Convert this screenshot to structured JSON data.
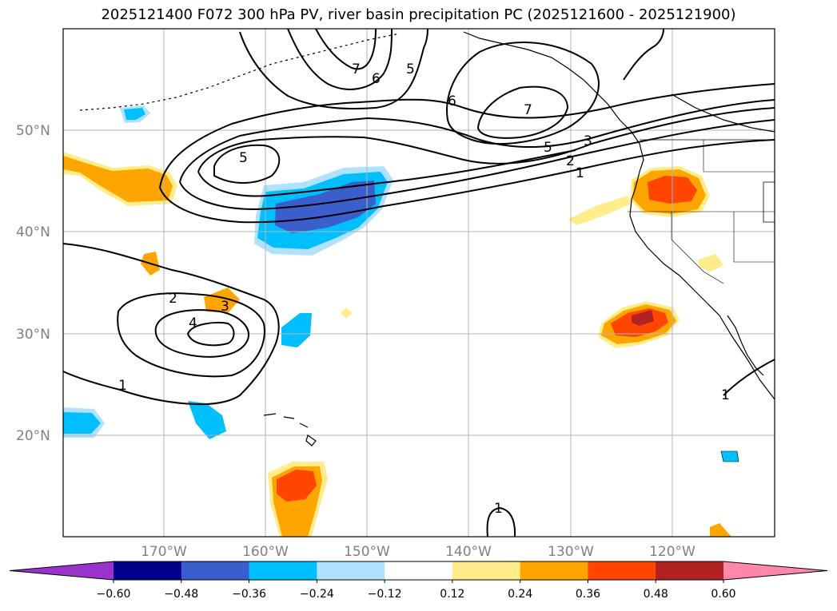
{
  "title": "2025121400 F072 300 hPa PV, river basin precipitation PC (2025121600 - 2025121900)",
  "latitude_labels": [
    "50°N",
    "40°N",
    "30°N",
    "20°N"
  ],
  "longitude_labels": [
    "170°W",
    "160°W",
    "150°W",
    "140°W",
    "130°W",
    "120°W"
  ],
  "contour_labels": [
    "7",
    "6",
    "5",
    "6",
    "7",
    "5",
    "3",
    "2",
    "1",
    "5",
    "2",
    "3",
    "4",
    "1",
    "1",
    "1"
  ],
  "colorbar": {
    "tick_labels": [
      "−0.60",
      "−0.48",
      "−0.36",
      "−0.24",
      "−0.12",
      "0.12",
      "0.24",
      "0.36",
      "0.48",
      "0.60"
    ],
    "colors": [
      "#9933cc",
      "#00008b",
      "#3a5fcd",
      "#00bfff",
      "#b0e2ff",
      "#ffffff",
      "#ffec8b",
      "#ffa500",
      "#ff4500",
      "#b22222",
      "#ff88aa"
    ]
  }
}
